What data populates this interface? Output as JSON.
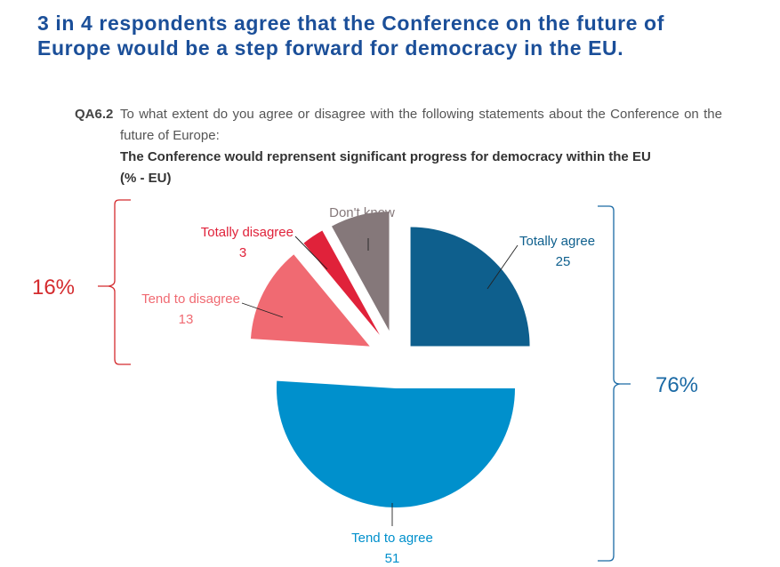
{
  "headline": {
    "line1": "3 in 4 respondents agree that the Conference on the future of",
    "line2": "Europe would be a step forward for democracy in the EU."
  },
  "question": {
    "code": "QA6.2",
    "text": "To what extent do you agree or disagree with the following statements about the Conference on the future of Europe:",
    "statement": "The Conference would reprensent significant progress for democracy within the EU",
    "unit": "(% - EU)"
  },
  "colors": {
    "totally_agree": "#0e5f8d",
    "tend_to_agree": "#0090cc",
    "tend_to_disagree": "#f06a72",
    "totally_disagree": "#e0223a",
    "dont_know": "#85787a",
    "disagree_bracket": "#d42b2e",
    "agree_bracket": "#1b6aa5"
  },
  "chart_data": {
    "type": "pie",
    "unit": "%",
    "slices": [
      {
        "key": "totally_agree",
        "label": "Totally agree",
        "value": 25
      },
      {
        "key": "tend_to_agree",
        "label": "Tend to agree",
        "value": 51
      },
      {
        "key": "tend_to_disagree",
        "label": "Tend to disagree",
        "value": 13
      },
      {
        "key": "totally_disagree",
        "label": "Totally disagree",
        "value": 3
      },
      {
        "key": "dont_know",
        "label": "Don't know",
        "value": 8
      }
    ],
    "groups": [
      {
        "key": "disagree",
        "label": "16%"
      },
      {
        "key": "agree",
        "label": "76%"
      }
    ]
  }
}
